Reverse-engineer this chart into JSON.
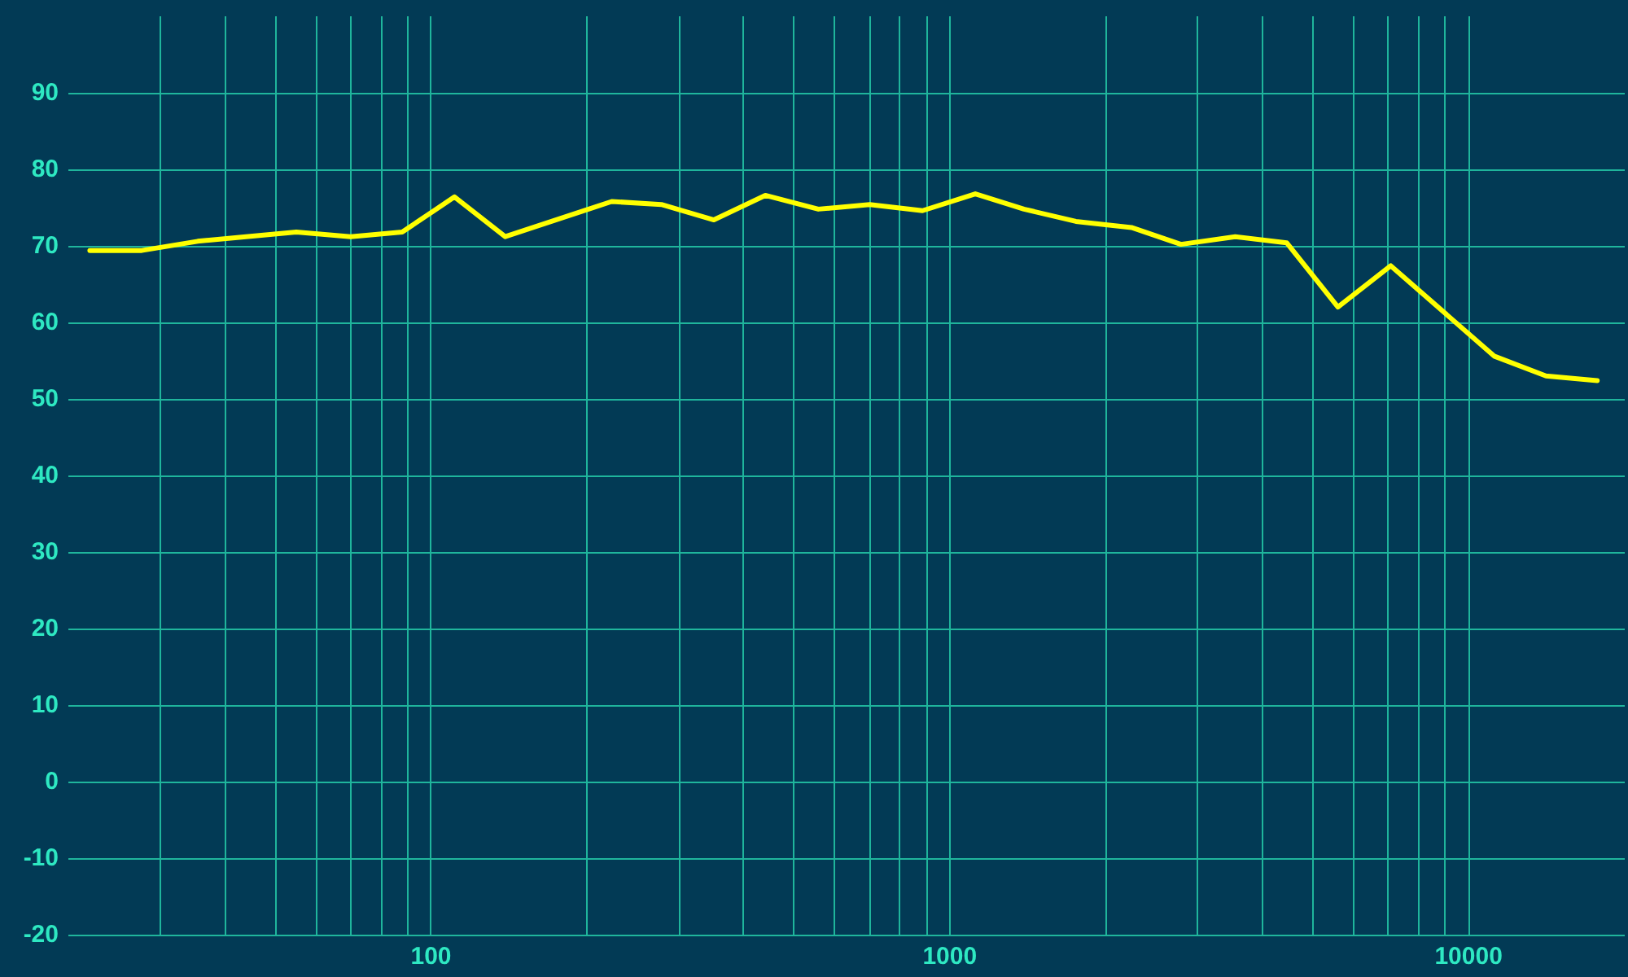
{
  "chart_data": {
    "type": "line",
    "log": "x",
    "x": [
      22,
      27.7,
      35.5,
      44,
      55,
      70,
      88,
      111,
      139,
      223,
      278,
      351,
      441,
      558,
      701,
      886,
      1120,
      1390,
      1750,
      2240,
      2790,
      3550,
      4460,
      5600,
      7080,
      11200,
      14100,
      17700
    ],
    "series": [
      {
        "color": "#ffff00",
        "values": [
          69.4,
          69.4,
          70.6,
          71.2,
          71.8,
          71.2,
          71.8,
          76.4,
          71.2,
          75.8,
          75.4,
          73.4,
          76.6,
          74.8,
          75.4,
          74.6,
          76.8,
          74.8,
          73.2,
          72.4,
          70.2,
          71.2,
          70.4,
          62,
          67.4,
          55.6,
          53,
          52.4
        ]
      }
    ],
    "xlim": [
      20,
      20000
    ],
    "xticks": [
      {
        "value": 30,
        "label": null
      },
      {
        "value": 40,
        "label": null
      },
      {
        "value": 50,
        "label": null
      },
      {
        "value": 60,
        "label": null
      },
      {
        "value": 70,
        "label": null
      },
      {
        "value": 80,
        "label": null
      },
      {
        "value": 90,
        "label": null
      },
      100,
      {
        "value": 200,
        "label": null
      },
      {
        "value": 300,
        "label": null
      },
      {
        "value": 400,
        "label": null
      },
      {
        "value": 500,
        "label": null
      },
      {
        "value": 600,
        "label": null
      },
      {
        "value": 700,
        "label": null
      },
      {
        "value": 800,
        "label": null
      },
      {
        "value": 900,
        "label": null
      },
      1000,
      {
        "value": 2000,
        "label": null
      },
      {
        "value": 3000,
        "label": null
      },
      {
        "value": 4000,
        "label": null
      },
      {
        "value": 5000,
        "label": null
      },
      {
        "value": 6000,
        "label": null
      },
      {
        "value": 7000,
        "label": null
      },
      {
        "value": 8000,
        "label": null
      },
      {
        "value": 9000,
        "label": null
      },
      10000
    ],
    "ylim": [
      -20,
      100
    ],
    "yticks": [
      -20,
      -10,
      0,
      10,
      20,
      30,
      40,
      50,
      60,
      70,
      80,
      90
    ],
    "grid": true,
    "marker": "none",
    "line_style": "solid"
  }
}
